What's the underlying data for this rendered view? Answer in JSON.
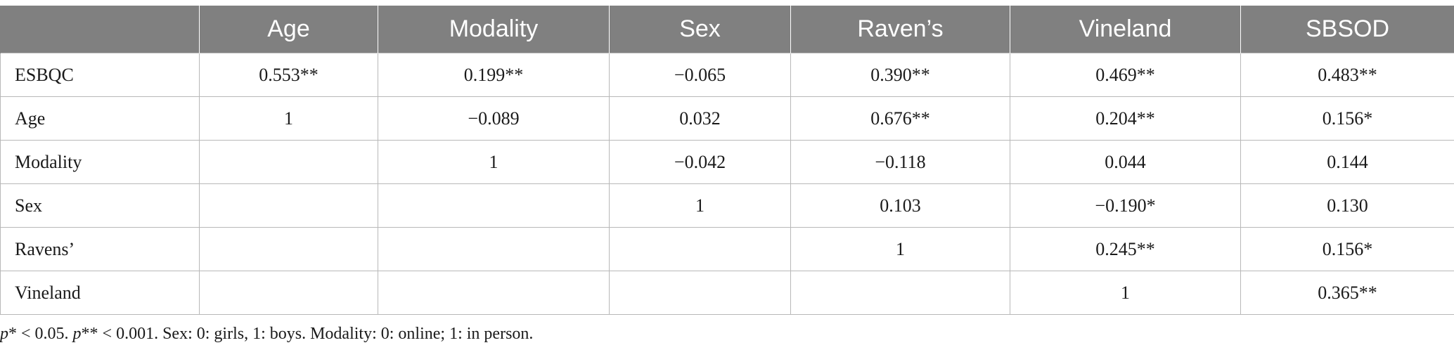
{
  "table": {
    "headers": [
      "",
      "Age",
      "Modality",
      "Sex",
      "Raven’s",
      "Vineland",
      "SBSOD"
    ],
    "rows": [
      {
        "label": "ESBQC",
        "cells": [
          "0.553**",
          "0.199**",
          "−0.065",
          "0.390**",
          "0.469**",
          "0.483**"
        ]
      },
      {
        "label": "Age",
        "cells": [
          "1",
          "−0.089",
          "0.032",
          "0.676**",
          "0.204**",
          "0.156*"
        ]
      },
      {
        "label": "Modality",
        "cells": [
          "",
          "1",
          "−0.042",
          "−0.118",
          "0.044",
          "0.144"
        ]
      },
      {
        "label": "Sex",
        "cells": [
          "",
          "",
          "1",
          "0.103",
          "−0.190*",
          "0.130"
        ]
      },
      {
        "label": "Ravens’",
        "cells": [
          "",
          "",
          "",
          "1",
          "0.245**",
          "0.156*"
        ]
      },
      {
        "label": "Vineland",
        "cells": [
          "",
          "",
          "",
          "",
          "1",
          "0.365**"
        ]
      }
    ]
  },
  "footnote": {
    "p1_symbol": "p",
    "p1_text": "* < 0.05. ",
    "p2_symbol": "p",
    "p2_text": "** < 0.001. Sex: 0: girls, 1: boys. Modality: 0: online; 1: in person."
  }
}
